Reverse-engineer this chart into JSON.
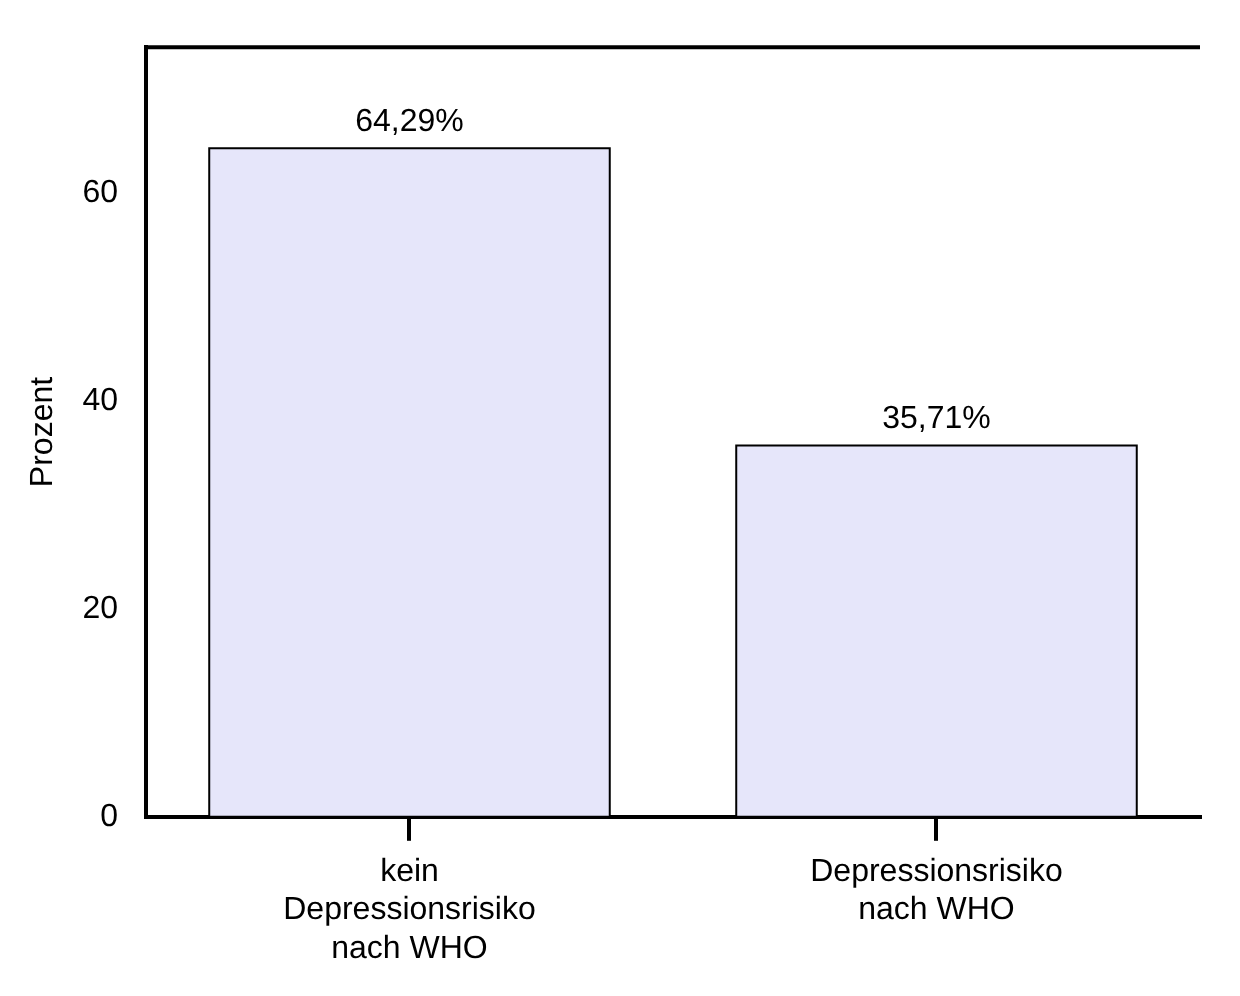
{
  "chart_data": {
    "type": "bar",
    "ylabel": "Prozent",
    "categories": [
      "kein Depressionsrisiko nach WHO",
      "Depressionsrisiko nach WHO"
    ],
    "values": [
      64.29,
      35.71
    ],
    "value_labels": [
      "64,29%",
      "35,71%"
    ],
    "color": "#e6e6fa",
    "ylim": [
      0,
      74
    ],
    "yticks": [
      0,
      20,
      40,
      60
    ],
    "grid": false,
    "legend": false
  }
}
